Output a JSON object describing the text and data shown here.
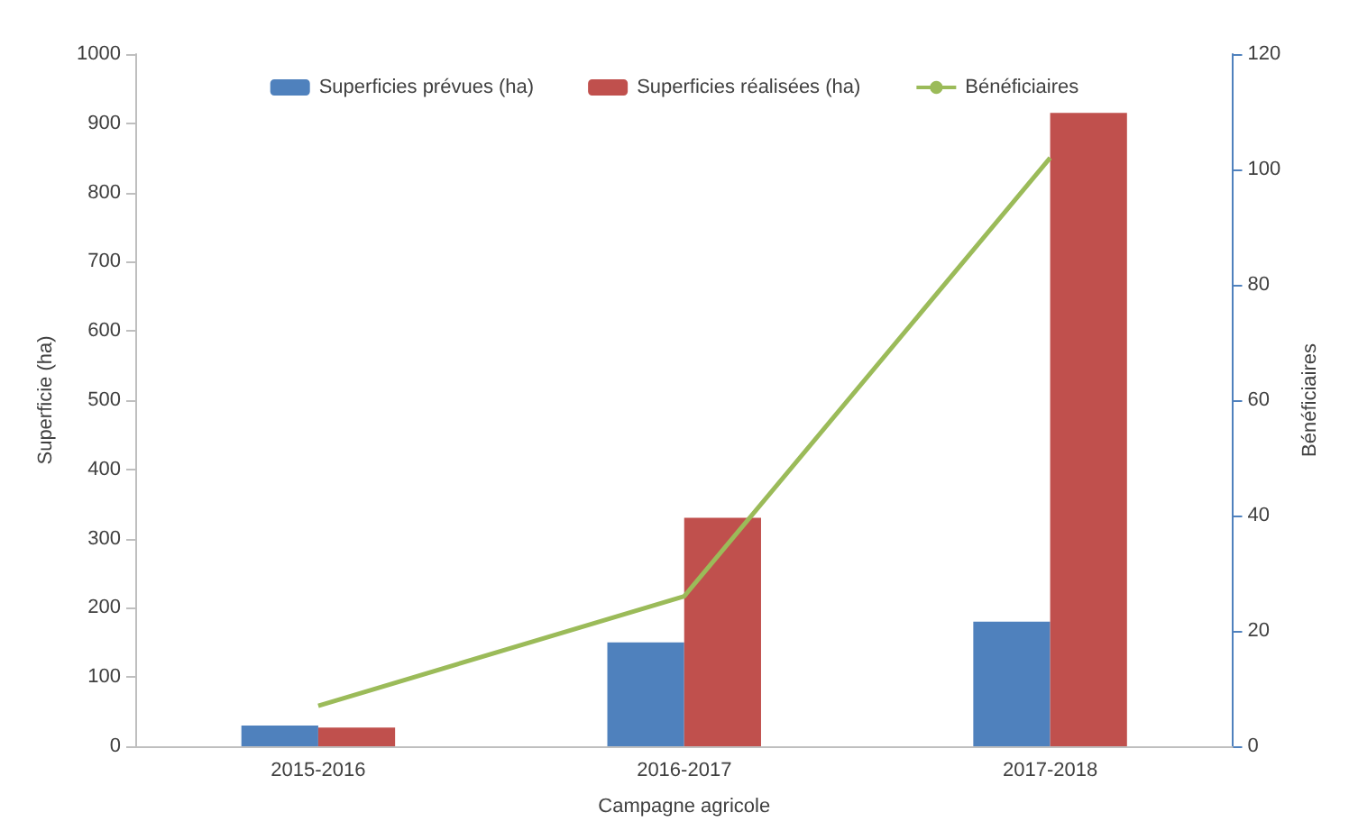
{
  "chart_data": {
    "type": "bar",
    "xlabel": "Campagne agricole",
    "ylabel": "Superficie (ha)",
    "y2label": "Bénéficiaires",
    "categories": [
      "2015-2016",
      "2016-2017",
      "2017-2018"
    ],
    "series": [
      {
        "name": "Superficies prévues (ha)",
        "color": "#4f81bd",
        "values": [
          30,
          150,
          180
        ]
      },
      {
        "name": "Superficies réalisées (ha)",
        "color": "#c0504d",
        "values": [
          27,
          330,
          915
        ]
      },
      {
        "name": "Bénéficiaires",
        "type": "line",
        "axis": "y2",
        "color": "#9bbb59",
        "values": [
          7,
          26,
          102
        ]
      }
    ],
    "ylim": [
      0,
      1000
    ],
    "yticks": [
      0,
      100,
      200,
      300,
      400,
      500,
      600,
      700,
      800,
      900,
      1000
    ],
    "y2lim": [
      0,
      120
    ],
    "y2ticks": [
      0,
      20,
      40,
      60,
      80,
      100,
      120
    ],
    "legend": "top",
    "grid": false,
    "marker": "none"
  }
}
